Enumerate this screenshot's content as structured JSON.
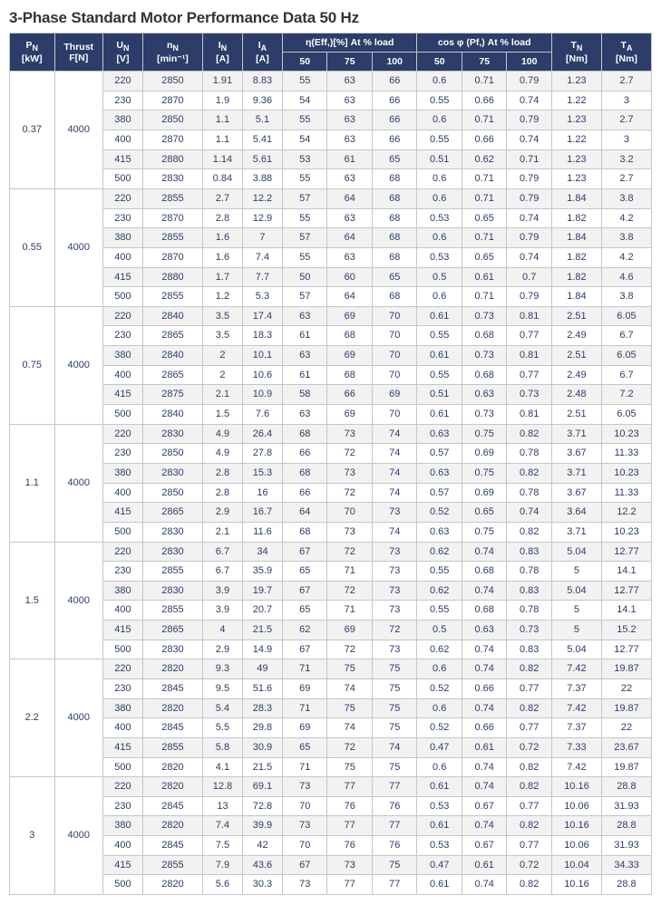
{
  "title": "3-Phase Standard Motor Performance Data 50 Hz",
  "colors": {
    "header_bg": "#2b3d68",
    "header_text": "#ffffff",
    "cell_text": "#2b3d68",
    "stripe_a": "#f2f2f2",
    "stripe_b": "#ffffff",
    "border": "#c6c6c6",
    "title_color": "#333333"
  },
  "header": {
    "pn": "P",
    "pn_sub": "N",
    "pn_unit": "[kW]",
    "thrust": "Thrust",
    "thrust_unit": "F[N]",
    "un": "U",
    "un_sub": "N",
    "un_unit": "[V]",
    "nn": "n",
    "nn_sub": "N",
    "nn_unit": "[min⁻¹]",
    "in": "I",
    "in_sub": "N",
    "in_unit": "[A]",
    "ia": "I",
    "ia_sub": "A",
    "ia_unit": "[A]",
    "eff_group": "η(Eff,)[%] At % load",
    "pf_group": "cos φ (Pf,) At % load",
    "c50": "50",
    "c75": "75",
    "c100": "100",
    "tn": "T",
    "tn_sub": "N",
    "tn_unit": "[Nm]",
    "ta": "T",
    "ta_sub": "A",
    "ta_unit": "[Nm]"
  },
  "groups": [
    {
      "pn": "0.37",
      "thrust": "4000",
      "rows": [
        [
          "220",
          "2850",
          "1.91",
          "8.83",
          "55",
          "63",
          "66",
          "0.6",
          "0.71",
          "0.79",
          "1.23",
          "2.7"
        ],
        [
          "230",
          "2870",
          "1.9",
          "9.36",
          "54",
          "63",
          "66",
          "0.55",
          "0.66",
          "0.74",
          "1.22",
          "3"
        ],
        [
          "380",
          "2850",
          "1.1",
          "5.1",
          "55",
          "63",
          "66",
          "0.6",
          "0.71",
          "0.79",
          "1.23",
          "2.7"
        ],
        [
          "400",
          "2870",
          "1.1",
          "5.41",
          "54",
          "63",
          "66",
          "0.55",
          "0.66",
          "0.74",
          "1.22",
          "3"
        ],
        [
          "415",
          "2880",
          "1.14",
          "5.61",
          "53",
          "61",
          "65",
          "0.51",
          "0.62",
          "0.71",
          "1.23",
          "3.2"
        ],
        [
          "500",
          "2830",
          "0.84",
          "3.88",
          "55",
          "63",
          "68",
          "0.6",
          "0.71",
          "0.79",
          "1.23",
          "2.7"
        ]
      ]
    },
    {
      "pn": "0.55",
      "thrust": "4000",
      "rows": [
        [
          "220",
          "2855",
          "2.7",
          "12.2",
          "57",
          "64",
          "68",
          "0.6",
          "0.71",
          "0.79",
          "1.84",
          "3.8"
        ],
        [
          "230",
          "2870",
          "2.8",
          "12.9",
          "55",
          "63",
          "68",
          "0.53",
          "0.65",
          "0.74",
          "1.82",
          "4.2"
        ],
        [
          "380",
          "2855",
          "1.6",
          "7",
          "57",
          "64",
          "68",
          "0.6",
          "0.71",
          "0.79",
          "1.84",
          "3.8"
        ],
        [
          "400",
          "2870",
          "1.6",
          "7.4",
          "55",
          "63",
          "68",
          "0.53",
          "0.65",
          "0.74",
          "1.82",
          "4.2"
        ],
        [
          "415",
          "2880",
          "1.7",
          "7.7",
          "50",
          "60",
          "65",
          "0.5",
          "0.61",
          "0.7",
          "1.82",
          "4.6"
        ],
        [
          "500",
          "2855",
          "1.2",
          "5.3",
          "57",
          "64",
          "68",
          "0.6",
          "0.71",
          "0.79",
          "1.84",
          "3.8"
        ]
      ]
    },
    {
      "pn": "0.75",
      "thrust": "4000",
      "rows": [
        [
          "220",
          "2840",
          "3.5",
          "17.4",
          "63",
          "69",
          "70",
          "0.61",
          "0.73",
          "0.81",
          "2.51",
          "6.05"
        ],
        [
          "230",
          "2865",
          "3.5",
          "18.3",
          "61",
          "68",
          "70",
          "0.55",
          "0.68",
          "0.77",
          "2.49",
          "6.7"
        ],
        [
          "380",
          "2840",
          "2",
          "10.1",
          "63",
          "69",
          "70",
          "0.61",
          "0.73",
          "0.81",
          "2.51",
          "6.05"
        ],
        [
          "400",
          "2865",
          "2",
          "10.6",
          "61",
          "68",
          "70",
          "0.55",
          "0.68",
          "0.77",
          "2.49",
          "6.7"
        ],
        [
          "415",
          "2875",
          "2.1",
          "10.9",
          "58",
          "66",
          "69",
          "0.51",
          "0.63",
          "0.73",
          "2.48",
          "7.2"
        ],
        [
          "500",
          "2840",
          "1.5",
          "7.6",
          "63",
          "69",
          "70",
          "0.61",
          "0.73",
          "0.81",
          "2.51",
          "6.05"
        ]
      ]
    },
    {
      "pn": "1.1",
      "thrust": "4000",
      "rows": [
        [
          "220",
          "2830",
          "4.9",
          "26.4",
          "68",
          "73",
          "74",
          "0.63",
          "0.75",
          "0.82",
          "3.71",
          "10.23"
        ],
        [
          "230",
          "2850",
          "4.9",
          "27.8",
          "66",
          "72",
          "74",
          "0.57",
          "0.69",
          "0.78",
          "3.67",
          "11.33"
        ],
        [
          "380",
          "2830",
          "2.8",
          "15.3",
          "68",
          "73",
          "74",
          "0.63",
          "0.75",
          "0.82",
          "3.71",
          "10.23"
        ],
        [
          "400",
          "2850",
          "2.8",
          "16",
          "66",
          "72",
          "74",
          "0.57",
          "0.69",
          "0.78",
          "3.67",
          "11.33"
        ],
        [
          "415",
          "2865",
          "2.9",
          "16.7",
          "64",
          "70",
          "73",
          "0.52",
          "0.65",
          "0.74",
          "3.64",
          "12.2"
        ],
        [
          "500",
          "2830",
          "2.1",
          "11.6",
          "68",
          "73",
          "74",
          "0.63",
          "0.75",
          "0.82",
          "3.71",
          "10.23"
        ]
      ]
    },
    {
      "pn": "1.5",
      "thrust": "4000",
      "rows": [
        [
          "220",
          "2830",
          "6.7",
          "34",
          "67",
          "72",
          "73",
          "0.62",
          "0.74",
          "0.83",
          "5.04",
          "12.77"
        ],
        [
          "230",
          "2855",
          "6.7",
          "35.9",
          "65",
          "71",
          "73",
          "0.55",
          "0.68",
          "0.78",
          "5",
          "14.1"
        ],
        [
          "380",
          "2830",
          "3.9",
          "19.7",
          "67",
          "72",
          "73",
          "0.62",
          "0.74",
          "0.83",
          "5.04",
          "12.77"
        ],
        [
          "400",
          "2855",
          "3.9",
          "20.7",
          "65",
          "71",
          "73",
          "0.55",
          "0.68",
          "0.78",
          "5",
          "14.1"
        ],
        [
          "415",
          "2865",
          "4",
          "21.5",
          "62",
          "69",
          "72",
          "0.5",
          "0.63",
          "0.73",
          "5",
          "15.2"
        ],
        [
          "500",
          "2830",
          "2.9",
          "14.9",
          "67",
          "72",
          "73",
          "0.62",
          "0.74",
          "0.83",
          "5.04",
          "12.77"
        ]
      ]
    },
    {
      "pn": "2.2",
      "thrust": "4000",
      "rows": [
        [
          "220",
          "2820",
          "9.3",
          "49",
          "71",
          "75",
          "75",
          "0.6",
          "0.74",
          "0.82",
          "7.42",
          "19.87"
        ],
        [
          "230",
          "2845",
          "9.5",
          "51.6",
          "69",
          "74",
          "75",
          "0.52",
          "0.66",
          "0.77",
          "7.37",
          "22"
        ],
        [
          "380",
          "2820",
          "5.4",
          "28.3",
          "71",
          "75",
          "75",
          "0.6",
          "0.74",
          "0.82",
          "7.42",
          "19.87"
        ],
        [
          "400",
          "2845",
          "5.5",
          "29.8",
          "69",
          "74",
          "75",
          "0.52",
          "0.66",
          "0.77",
          "7.37",
          "22"
        ],
        [
          "415",
          "2855",
          "5.8",
          "30.9",
          "65",
          "72",
          "74",
          "0.47",
          "0.61",
          "0.72",
          "7.33",
          "23.67"
        ],
        [
          "500",
          "2820",
          "4.1",
          "21.5",
          "71",
          "75",
          "75",
          "0.6",
          "0.74",
          "0.82",
          "7.42",
          "19.87"
        ]
      ]
    },
    {
      "pn": "3",
      "thrust": "4000",
      "rows": [
        [
          "220",
          "2820",
          "12.8",
          "69.1",
          "73",
          "77",
          "77",
          "0.61",
          "0.74",
          "0.82",
          "10.16",
          "28.8"
        ],
        [
          "230",
          "2845",
          "13",
          "72.8",
          "70",
          "76",
          "76",
          "0.53",
          "0.67",
          "0.77",
          "10.06",
          "31.93"
        ],
        [
          "380",
          "2820",
          "7.4",
          "39.9",
          "73",
          "77",
          "77",
          "0.61",
          "0.74",
          "0.82",
          "10.16",
          "28.8"
        ],
        [
          "400",
          "2845",
          "7.5",
          "42",
          "70",
          "76",
          "76",
          "0.53",
          "0.67",
          "0.77",
          "10.06",
          "31.93"
        ],
        [
          "415",
          "2855",
          "7.9",
          "43.6",
          "67",
          "73",
          "75",
          "0.47",
          "0.61",
          "0.72",
          "10.04",
          "34.33"
        ],
        [
          "500",
          "2820",
          "5.6",
          "30.3",
          "73",
          "77",
          "77",
          "0.61",
          "0.74",
          "0.82",
          "10.16",
          "28.8"
        ]
      ]
    }
  ],
  "column_widths_pct": [
    6.3,
    6.8,
    5.6,
    8.4,
    5.6,
    5.6,
    6.3,
    6.3,
    6.3,
    6.3,
    6.3,
    6.3,
    7.0,
    7.0
  ]
}
